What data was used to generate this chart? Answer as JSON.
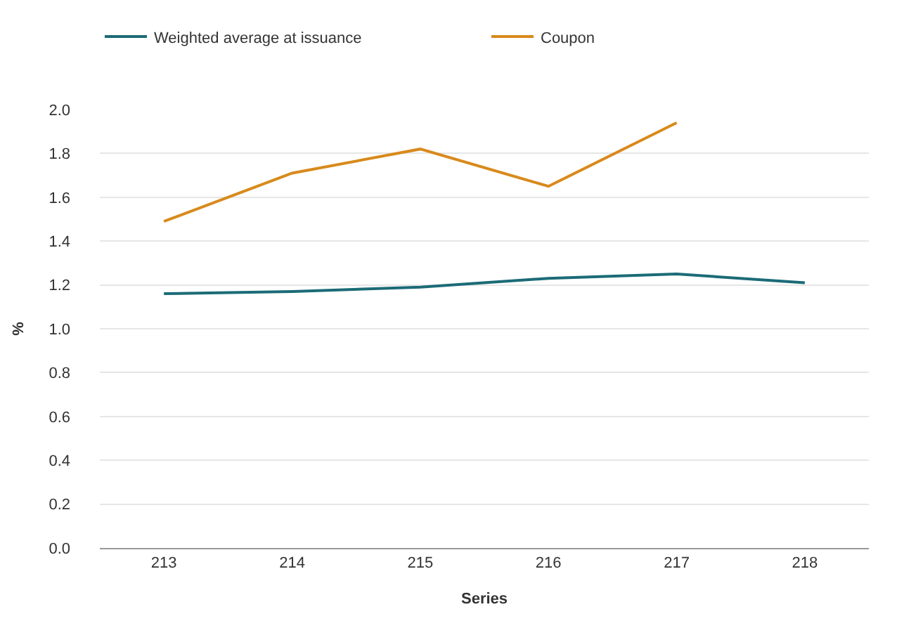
{
  "chart_data": {
    "type": "line",
    "xlabel": "Series",
    "ylabel": "%",
    "categories": [
      "213",
      "214",
      "215",
      "216",
      "217",
      "218"
    ],
    "series": [
      {
        "name": "Weighted average at issuance",
        "color": "#1b6b77",
        "values": [
          1.16,
          1.17,
          1.19,
          1.23,
          1.25,
          1.21
        ]
      },
      {
        "name": "Coupon",
        "color": "#d88a1c",
        "values": [
          1.49,
          1.71,
          1.82,
          1.65,
          1.94,
          null
        ]
      }
    ],
    "ylim": [
      0,
      2.0
    ],
    "yticks": [
      {
        "value": 0,
        "label": "0.0"
      },
      {
        "value": 0.2,
        "label": "0.2"
      },
      {
        "value": 0.4,
        "label": "0.4"
      },
      {
        "value": 0.6,
        "label": "0.6"
      },
      {
        "value": 0.8,
        "label": "0.8"
      },
      {
        "value": 1.0,
        "label": "1.0"
      },
      {
        "value": 1.2,
        "label": "1.2"
      },
      {
        "value": 1.4,
        "label": "1.4"
      },
      {
        "value": 1.6,
        "label": "1.6"
      },
      {
        "value": 1.8,
        "label": "1.8"
      },
      {
        "value": 2.0,
        "label": "2.0"
      }
    ],
    "grid": "y",
    "legend": "top",
    "marker": "none",
    "line_style": "solid"
  }
}
